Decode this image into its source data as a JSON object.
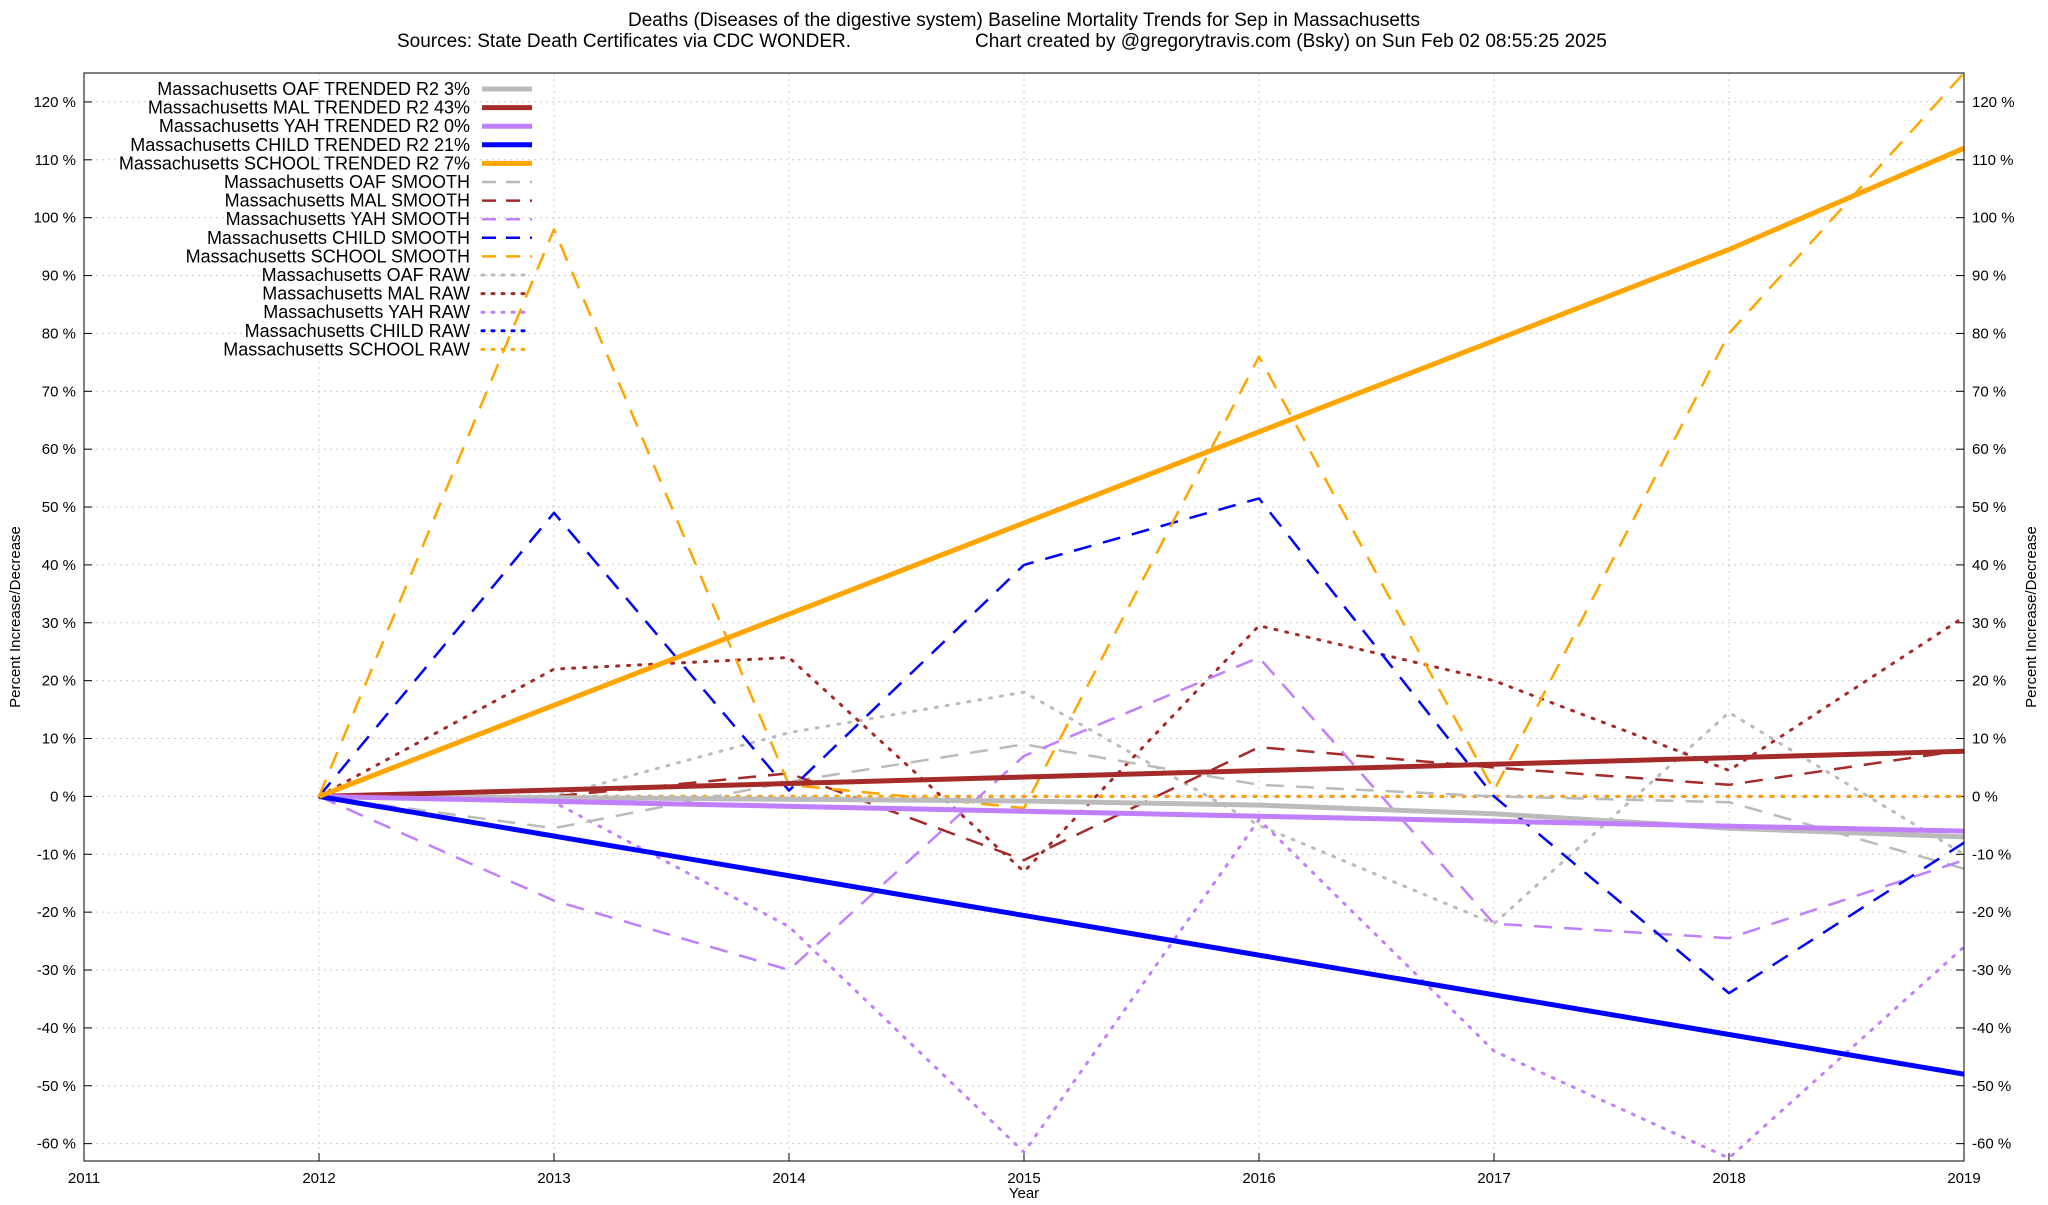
{
  "chart_data": {
    "type": "line",
    "title": "Deaths (Diseases of the digestive system)  Baseline Mortality Trends for Sep in Massachusetts",
    "subtitle_left": "Sources: State Death Certificates via CDC WONDER.",
    "subtitle_right": "Chart created by @gregorytravis.com (Bsky) on Sun Feb 02 08:55:25 2025",
    "xlabel": "Year",
    "ylabel": "Percent Increase/Decrease",
    "y2label": "Percent Increase/Decrease",
    "xlim": [
      2011,
      2019
    ],
    "ylim": [
      -63,
      125
    ],
    "x_ticks": [
      2011,
      2012,
      2013,
      2014,
      2015,
      2016,
      2017,
      2018,
      2019
    ],
    "x_tick_labels": [
      "2011",
      "2012",
      "2013",
      "2014",
      "2015",
      "2016",
      "2017",
      "2018",
      "2019"
    ],
    "y_ticks": [
      120,
      110,
      100,
      90,
      80,
      70,
      60,
      50,
      40,
      30,
      20,
      10,
      0,
      -10,
      -20,
      -30,
      -40,
      -50,
      -60
    ],
    "y_tick_labels": [
      "120 %",
      "110 %",
      "100 %",
      "90 %",
      "80 %",
      "70 %",
      "60 %",
      "50 %",
      "40 %",
      "30 %",
      "20 %",
      "10 %",
      "0 %",
      "-10 %",
      "-20 %",
      "-30 %",
      "-40 %",
      "-50 %",
      "-60 %"
    ],
    "grid": true,
    "legend_position": "top-left",
    "series": [
      {
        "name": "Massachusetts OAF TRENDED R2  3%",
        "style": "solid",
        "color": "#bbbbbb",
        "x": [
          2012,
          2013,
          2014,
          2015,
          2016,
          2017,
          2018,
          2019
        ],
        "values": [
          0,
          -0.2,
          -0.5,
          -0.8,
          -1.5,
          -3,
          -5.5,
          -7
        ]
      },
      {
        "name": "Massachusetts MAL TRENDED R2  43%",
        "style": "solid",
        "color": "#a52a2a",
        "x": [
          2012,
          2019
        ],
        "values": [
          0,
          7.8
        ]
      },
      {
        "name": "Massachusetts YAH TRENDED R2  0%",
        "style": "solid",
        "color": "#bf7fff",
        "x": [
          2012,
          2019
        ],
        "values": [
          0,
          -6
        ]
      },
      {
        "name": "Massachusetts CHILD TRENDED R2  21%",
        "style": "solid",
        "color": "#0000ff",
        "x": [
          2012,
          2019
        ],
        "values": [
          0,
          -48
        ]
      },
      {
        "name": "Massachusetts SCHOOL TRENDED R2  7%",
        "style": "solid",
        "color": "#ffa500",
        "x": [
          2012,
          2018,
          2019
        ],
        "values": [
          0,
          94.5,
          112
        ]
      },
      {
        "name": "Massachusetts OAF SMOOTH",
        "style": "dash",
        "color": "#bbbbbb",
        "x": [
          2012,
          2013,
          2014,
          2015,
          2016,
          2017,
          2018,
          2019
        ],
        "values": [
          0,
          -5.5,
          2.5,
          9,
          2,
          0,
          -1,
          -12.5
        ]
      },
      {
        "name": "Massachusetts MAL SMOOTH",
        "style": "dash",
        "color": "#a52a2a",
        "x": [
          2012,
          2013,
          2014,
          2015,
          2016,
          2017,
          2018,
          2019
        ],
        "values": [
          0,
          0,
          4,
          -11,
          8.5,
          5,
          2,
          8
        ]
      },
      {
        "name": "Massachusetts YAH SMOOTH",
        "style": "dash",
        "color": "#bf7fff",
        "x": [
          2012,
          2013,
          2014,
          2015,
          2016,
          2017,
          2018,
          2019
        ],
        "values": [
          0,
          -18,
          -30,
          7,
          24,
          -22,
          -24.5,
          -11
        ]
      },
      {
        "name": "Massachusetts CHILD SMOOTH",
        "style": "dash",
        "color": "#0000ff",
        "x": [
          2012,
          2013,
          2014,
          2015,
          2016,
          2017,
          2018,
          2019
        ],
        "values": [
          0,
          49,
          1,
          40,
          51.5,
          0,
          -34,
          -8
        ]
      },
      {
        "name": "Massachusetts SCHOOL SMOOTH",
        "style": "dash",
        "color": "#ffa500",
        "x": [
          2012,
          2013,
          2014,
          2015,
          2016,
          2017,
          2018,
          2019
        ],
        "values": [
          0,
          98,
          2,
          -2,
          76,
          1,
          80,
          125
        ]
      },
      {
        "name": "Massachusetts OAF RAW",
        "style": "dot",
        "color": "#bbbbbb",
        "x": [
          2012,
          2013,
          2014,
          2015,
          2016,
          2017,
          2018,
          2019
        ],
        "values": [
          0,
          0,
          11,
          18,
          -5,
          -22,
          14.5,
          -10
        ]
      },
      {
        "name": "Massachusetts MAL RAW",
        "style": "dot",
        "color": "#a52a2a",
        "x": [
          2012,
          2013,
          2014,
          2015,
          2016,
          2017,
          2018,
          2019
        ],
        "values": [
          0,
          22,
          24,
          -13,
          29.5,
          20,
          4.5,
          31
        ]
      },
      {
        "name": "Massachusetts YAH RAW",
        "style": "dot",
        "color": "#bf7fff",
        "x": [
          2012,
          2013,
          2014,
          2015,
          2016,
          2017,
          2018,
          2019
        ],
        "values": [
          0,
          -1,
          -22.5,
          -61.5,
          -4,
          -44,
          -62.5,
          -26
        ]
      },
      {
        "name": "Massachusetts CHILD RAW",
        "style": "dot",
        "color": "#0000ff",
        "x": [
          2012,
          2013,
          2014,
          2015,
          2016,
          2017,
          2018,
          2019
        ],
        "values": [
          0,
          0,
          0,
          0,
          0,
          0,
          0,
          0
        ]
      },
      {
        "name": "Massachusetts SCHOOL RAW",
        "style": "dot",
        "color": "#ffa500",
        "x": [
          2012,
          2013,
          2014,
          2015,
          2016,
          2017,
          2018,
          2019
        ],
        "values": [
          0,
          0,
          0,
          0,
          0,
          0,
          0,
          0
        ]
      }
    ]
  }
}
